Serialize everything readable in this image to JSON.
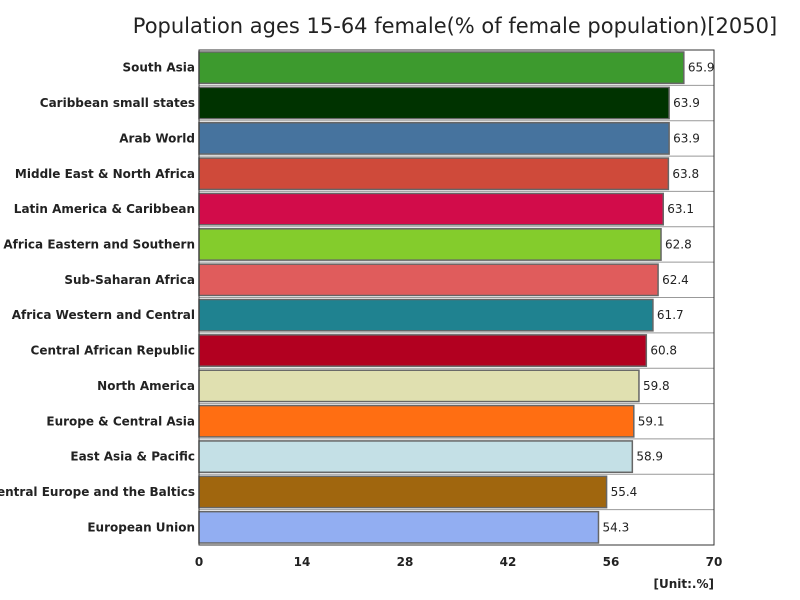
{
  "chart_data": {
    "type": "bar",
    "orientation": "horizontal",
    "title": "Population ages 15-64 female(% of female population)[2050]",
    "unit": "[Unit:.%]",
    "xlim": [
      0,
      70
    ],
    "x_ticks": [
      0,
      14,
      28,
      42,
      56,
      70
    ],
    "grid": "horizontal row lines",
    "categories": [
      "South Asia",
      "Caribbean small states",
      "Arab World",
      "Middle East & North Africa",
      "Latin America & Caribbean",
      "Africa Eastern and Southern",
      "Sub-Saharan Africa",
      "Africa Western and Central",
      "Central African Republic",
      "North America",
      "Europe & Central Asia",
      "East Asia & Pacific",
      "Central Europe and the Baltics",
      "European Union"
    ],
    "values": [
      65.9,
      63.9,
      63.9,
      63.8,
      63.1,
      62.8,
      62.4,
      61.7,
      60.8,
      59.8,
      59.1,
      58.9,
      55.4,
      54.3
    ],
    "colors": [
      "#3d9a2e",
      "#003300",
      "#46739e",
      "#cf4a3a",
      "#d20c4a",
      "#84cc2c",
      "#e05c5c",
      "#1f8290",
      "#b20020",
      "#e0e0b0",
      "#ff6e12",
      "#c4e0e6",
      "#a0660e",
      "#92aef2"
    ]
  }
}
